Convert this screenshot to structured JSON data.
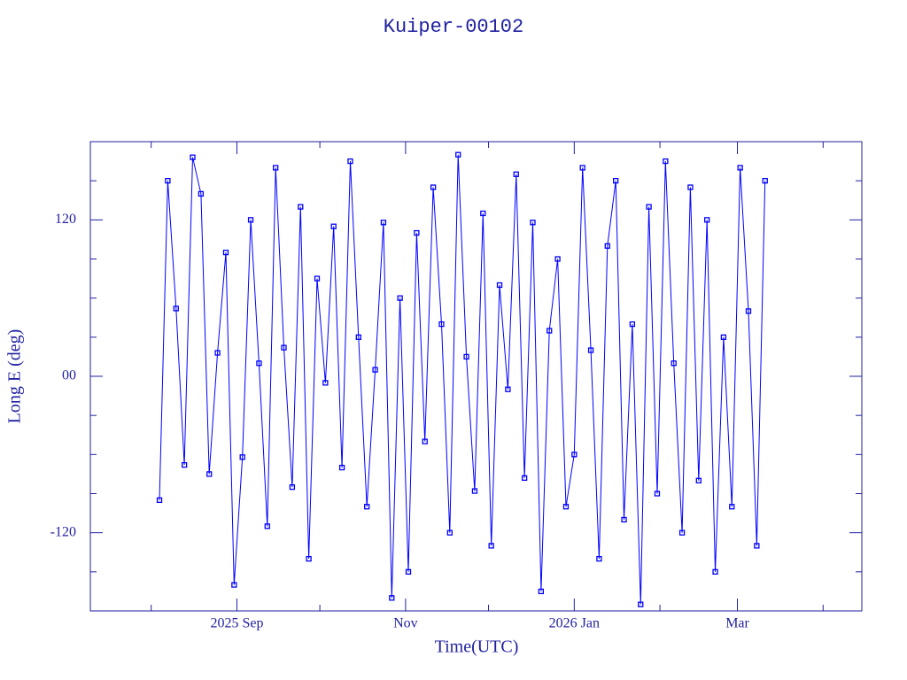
{
  "chart_data": {
    "type": "line",
    "title": "Kuiper-00102",
    "xlabel": "Time(UTC)",
    "ylabel": "Long E (deg)",
    "color": "#0000ff",
    "frame_color": "#1f1fa0",
    "markers": true,
    "xlim": [
      "2025-07-10",
      "2026-04-15"
    ],
    "xticks": [
      {
        "value": "2025-09-01",
        "label": "2025 Sep"
      },
      {
        "value": "2025-11-01",
        "label": "Nov"
      },
      {
        "value": "2026-01-01",
        "label": "2026 Jan"
      },
      {
        "value": "2026-03-01",
        "label": "Mar"
      }
    ],
    "xminor": [
      "2025-08-01",
      "2025-10-01",
      "2025-12-01",
      "2026-02-01",
      "2026-04-01"
    ],
    "ylim": [
      -180,
      180
    ],
    "yticks": [
      -120,
      {
        "value": 0,
        "label": "00"
      },
      120
    ],
    "yminor": [
      -150,
      -90,
      -60,
      -30,
      30,
      60,
      90,
      150
    ],
    "x": [
      "2025-08-04",
      "2025-08-07",
      "2025-08-10",
      "2025-08-13",
      "2025-08-16",
      "2025-08-19",
      "2025-08-22",
      "2025-08-25",
      "2025-08-28",
      "2025-08-31",
      "2025-09-03",
      "2025-09-06",
      "2025-09-09",
      "2025-09-12",
      "2025-09-15",
      "2025-09-18",
      "2025-09-21",
      "2025-09-24",
      "2025-09-27",
      "2025-09-30",
      "2025-10-03",
      "2025-10-06",
      "2025-10-09",
      "2025-10-12",
      "2025-10-15",
      "2025-10-18",
      "2025-10-21",
      "2025-10-24",
      "2025-10-27",
      "2025-10-30",
      "2025-11-02",
      "2025-11-05",
      "2025-11-08",
      "2025-11-11",
      "2025-11-14",
      "2025-11-17",
      "2025-11-20",
      "2025-11-23",
      "2025-11-26",
      "2025-11-29",
      "2025-12-02",
      "2025-12-05",
      "2025-12-08",
      "2025-12-11",
      "2025-12-14",
      "2025-12-17",
      "2025-12-20",
      "2025-12-23",
      "2025-12-26",
      "2025-12-29",
      "2026-01-01",
      "2026-01-04",
      "2026-01-07",
      "2026-01-10",
      "2026-01-13",
      "2026-01-16",
      "2026-01-19",
      "2026-01-22",
      "2026-01-25",
      "2026-01-28",
      "2026-01-31",
      "2026-02-03",
      "2026-02-06",
      "2026-02-09",
      "2026-02-12",
      "2026-02-15",
      "2026-02-18",
      "2026-02-21",
      "2026-02-24",
      "2026-02-27",
      "2026-03-02",
      "2026-03-05",
      "2026-03-08",
      "2026-03-11"
    ],
    "values": [
      -95,
      150,
      52,
      -68,
      168,
      140,
      -75,
      18,
      95,
      -160,
      -62,
      120,
      10,
      -115,
      160,
      22,
      -85,
      130,
      -140,
      75,
      -5,
      115,
      -70,
      165,
      30,
      -100,
      5,
      118,
      -170,
      60,
      -150,
      110,
      -50,
      145,
      40,
      -120,
      170,
      15,
      -88,
      125,
      -130,
      70,
      -10,
      155,
      -78,
      118,
      -165,
      35,
      90,
      -100,
      -60,
      160,
      20,
      -140,
      100,
      150,
      -110,
      40,
      -175,
      130,
      -90,
      165,
      10,
      -120,
      145,
      -80,
      120,
      -150,
      30,
      -100,
      160,
      50,
      -130,
      150
    ]
  }
}
